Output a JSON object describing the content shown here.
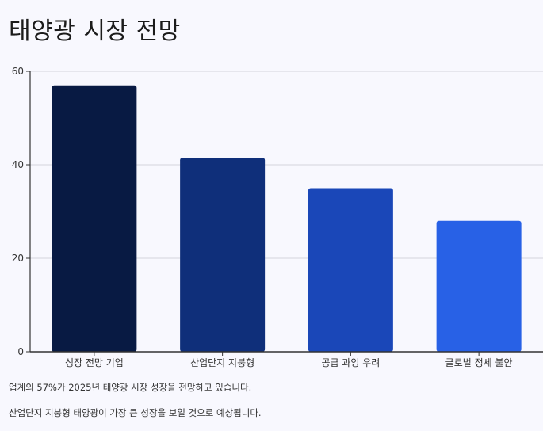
{
  "title": "태양광 시장 전망",
  "notes": [
    "업계의 57%가 2025년 태양광 시장 성장을 전망하고 있습니다.",
    "산업단지 지붕형 태양광이 가장 큰 성장을 보일 것으로 예상됩니다."
  ],
  "chart_data": {
    "type": "bar",
    "categories": [
      "성장 전망 기업",
      "산업단지 지붕형",
      "공급 과잉 우려",
      "글로벌 정세 불안"
    ],
    "values": [
      57,
      41.5,
      35,
      28
    ],
    "colors": [
      "#081a43",
      "#0f2f7a",
      "#1a47b8",
      "#2861e6"
    ],
    "ylim": [
      0,
      60
    ],
    "yticks": [
      0,
      20,
      40,
      60
    ],
    "grid": true,
    "title": "태양광 시장 전망",
    "xlabel": "",
    "ylabel": ""
  }
}
